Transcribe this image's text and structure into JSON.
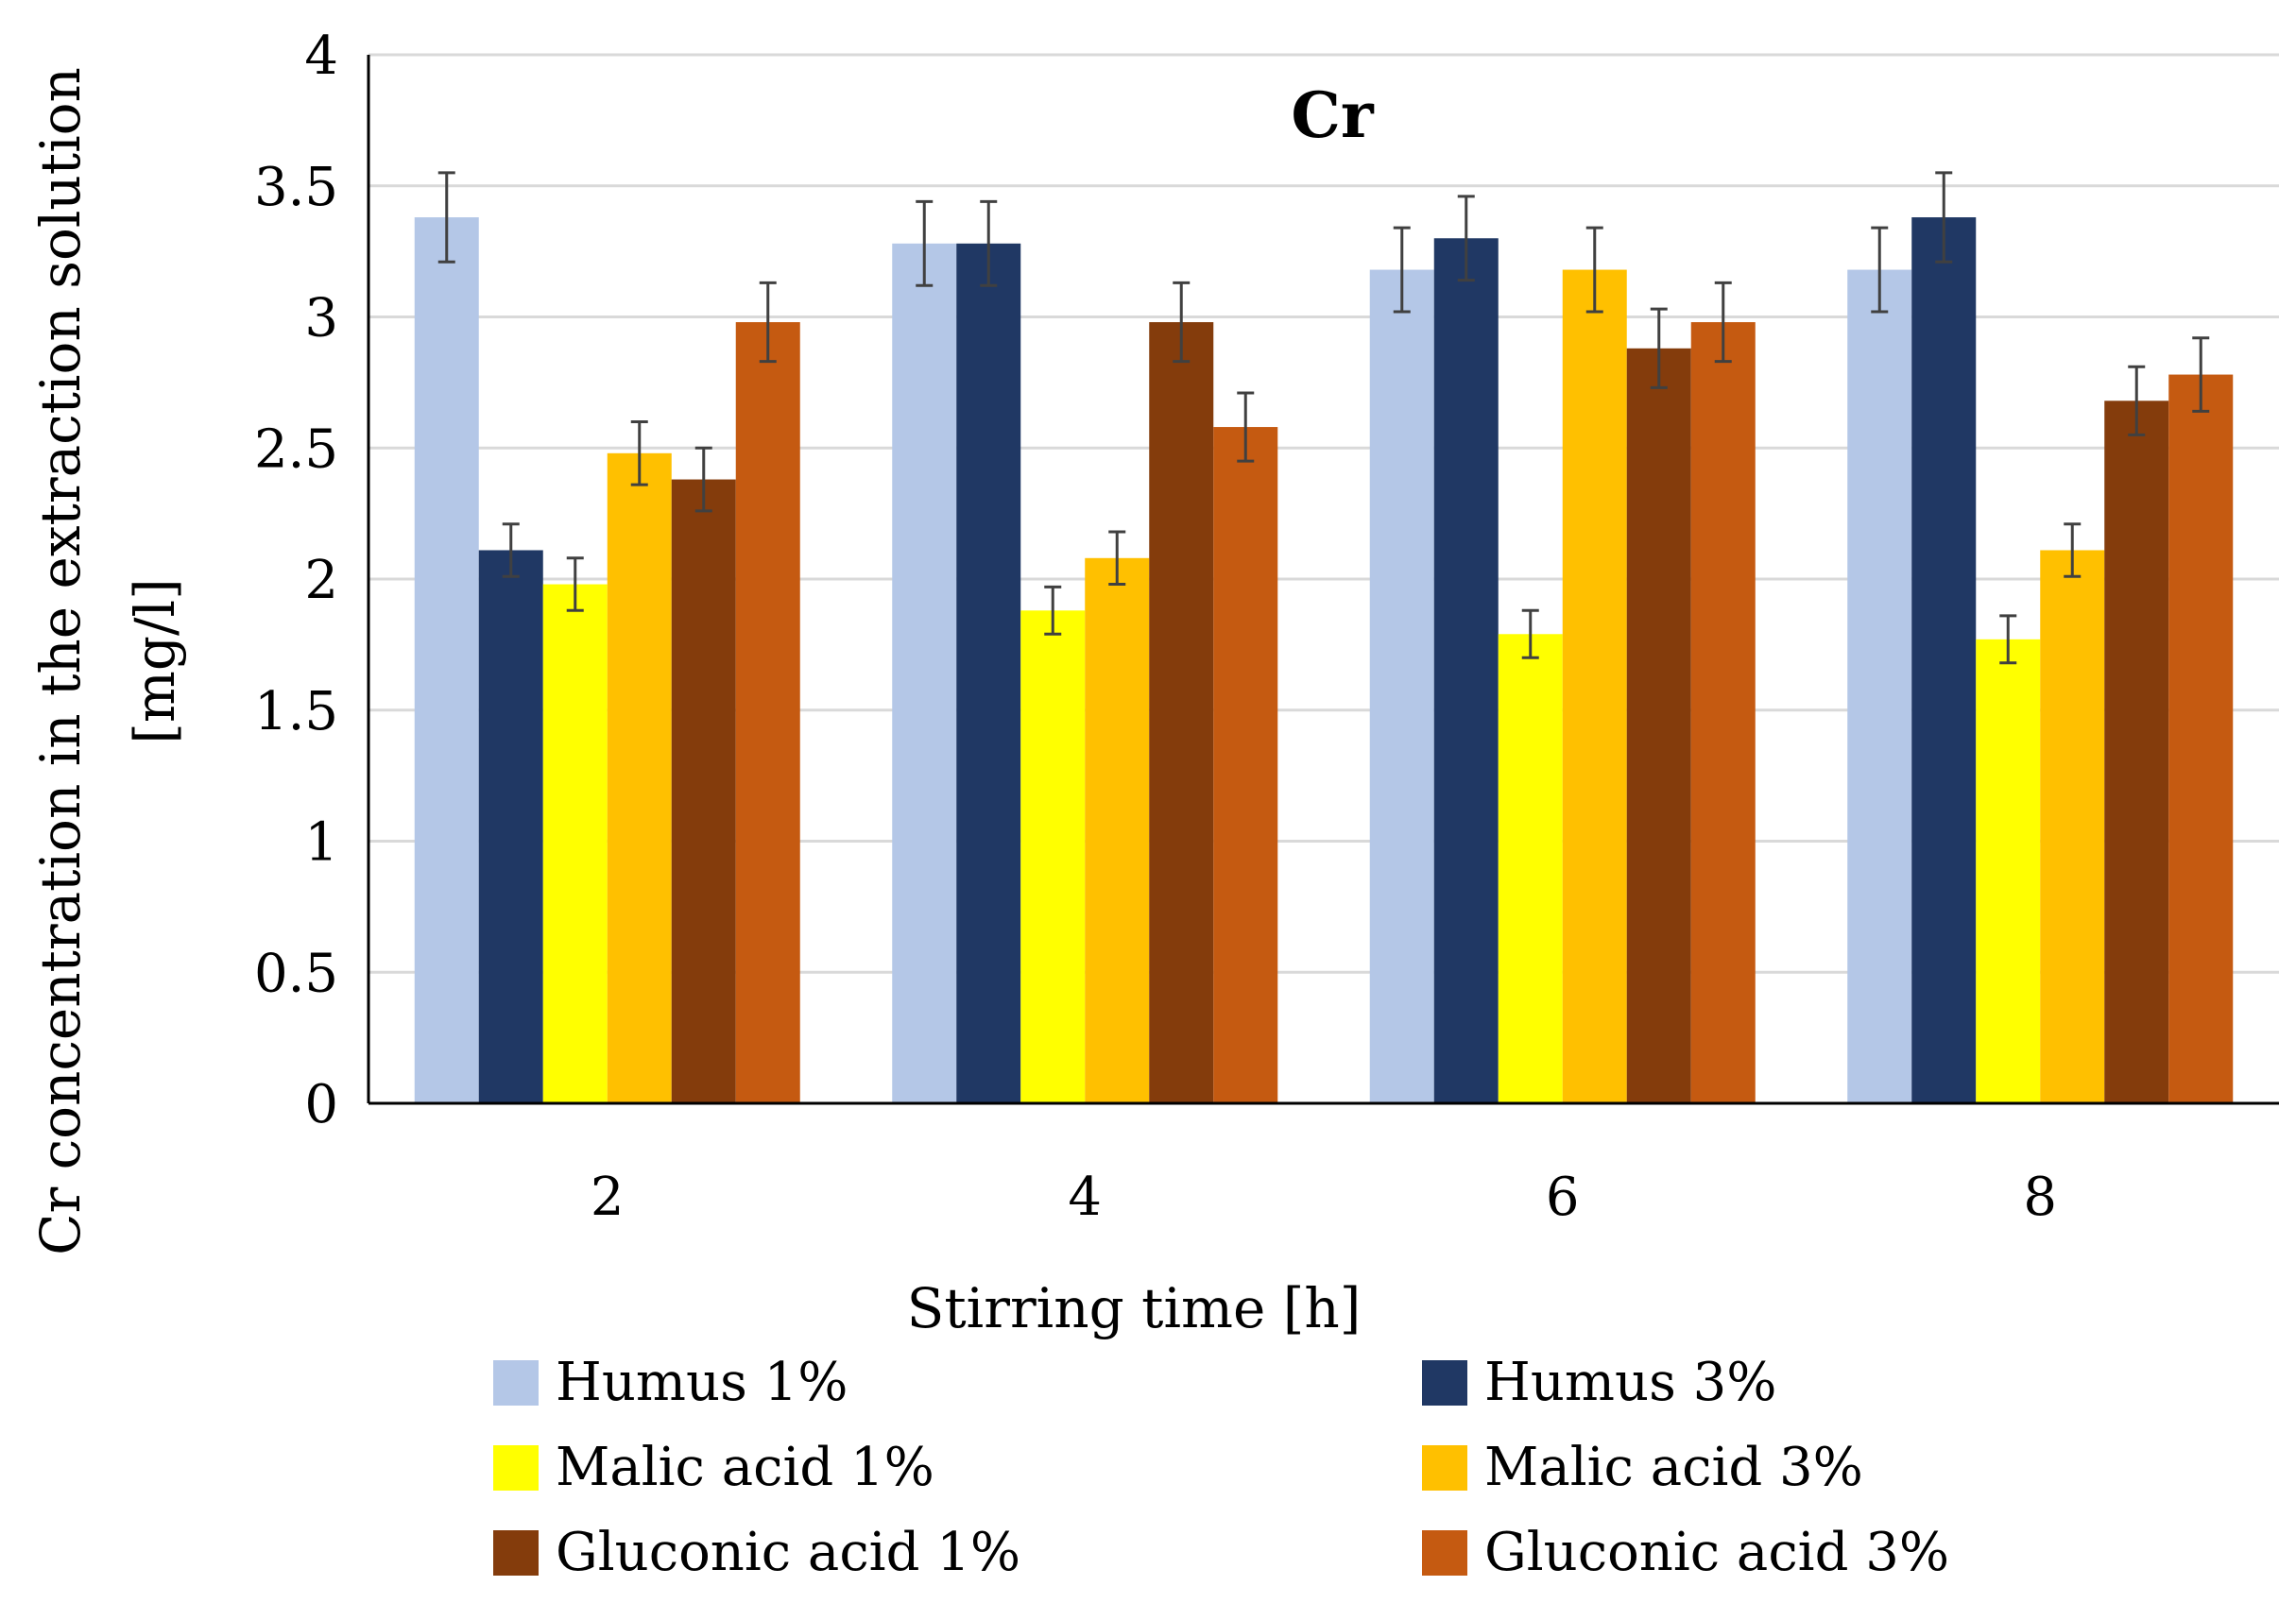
{
  "chart_data": {
    "type": "bar",
    "title": "Cr",
    "xlabel": "Stirring time [h]",
    "ylabel": "Cr concentration in the extraction solution",
    "ylabel_unit": "[mg/l]",
    "categories": [
      "2",
      "4",
      "6",
      "8"
    ],
    "ylim": [
      0,
      4
    ],
    "yticks": [
      "0",
      "0.5",
      "1",
      "1.5",
      "2",
      "2.5",
      "3",
      "3.5",
      "4"
    ],
    "ytick_values": [
      0,
      0.5,
      1,
      1.5,
      2,
      2.5,
      3,
      3.5,
      4
    ],
    "grid": true,
    "legend_position": "bottom",
    "series": [
      {
        "name": "Humus 1%",
        "color": "#b4c7e7",
        "values": [
          3.38,
          3.28,
          3.18,
          3.18
        ],
        "errors": [
          0.17,
          0.16,
          0.16,
          0.16
        ]
      },
      {
        "name": "Humus 3%",
        "color": "#203864",
        "values": [
          2.11,
          3.28,
          3.3,
          3.38
        ],
        "errors": [
          0.1,
          0.16,
          0.16,
          0.17
        ]
      },
      {
        "name": "Malic acid 1%",
        "color": "#ffff00",
        "values": [
          1.98,
          1.88,
          1.79,
          1.77
        ],
        "errors": [
          0.1,
          0.09,
          0.09,
          0.09
        ]
      },
      {
        "name": "Malic acid 3%",
        "color": "#ffc000",
        "values": [
          2.48,
          2.08,
          3.18,
          2.11
        ],
        "errors": [
          0.12,
          0.1,
          0.16,
          0.1
        ]
      },
      {
        "name": "Gluconic acid 1%",
        "color": "#843c0c",
        "values": [
          2.38,
          2.98,
          2.88,
          2.68
        ],
        "errors": [
          0.12,
          0.15,
          0.15,
          0.13
        ]
      },
      {
        "name": "Gluconic acid 3%",
        "color": "#c55a11",
        "values": [
          2.98,
          2.58,
          2.98,
          2.78
        ],
        "errors": [
          0.15,
          0.13,
          0.15,
          0.14
        ]
      }
    ]
  }
}
